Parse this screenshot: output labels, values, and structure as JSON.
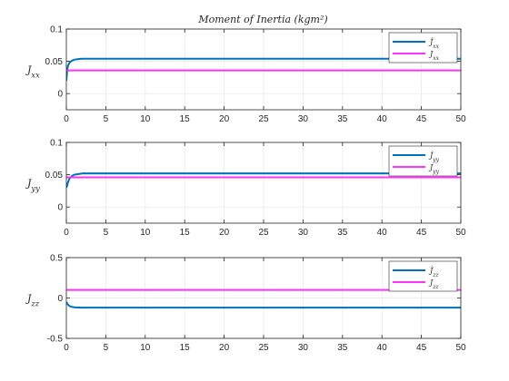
{
  "figure": {
    "title": "Moment of Inertia (kgm²)",
    "colors": {
      "estimate": "#0072BD",
      "true": "#FF33FF",
      "grid": "#e6e6e6",
      "axis": "#262626"
    }
  },
  "chart_data": [
    {
      "type": "line",
      "title": "Moment of Inertia (kgm²)",
      "xlabel": "",
      "ylabel": "J_xx",
      "xlim": [
        0,
        50
      ],
      "ylim": [
        -0.025,
        0.1
      ],
      "xticks": [
        0,
        5,
        10,
        15,
        20,
        25,
        30,
        35,
        40,
        45,
        50
      ],
      "yticks": [
        0,
        0.05,
        0.1
      ],
      "ytick_labels": [
        "0",
        "0.05",
        "0.1"
      ],
      "grid": true,
      "legend_position": "top-right",
      "series": [
        {
          "name": "Ĵ_xx",
          "color": "#0072BD",
          "x": [
            0,
            0.1,
            0.2,
            0.4,
            0.7,
            1.0,
            1.5,
            2.0,
            2.5,
            3.0,
            50
          ],
          "y": [
            0.02,
            0.035,
            0.043,
            0.048,
            0.051,
            0.0525,
            0.0535,
            0.054,
            0.054,
            0.054,
            0.054
          ]
        },
        {
          "name": "J_xx",
          "color": "#FF33FF",
          "x": [
            0,
            50
          ],
          "y": [
            0.036,
            0.036
          ]
        }
      ]
    },
    {
      "type": "line",
      "title": "",
      "xlabel": "",
      "ylabel": "J_yy",
      "xlim": [
        0,
        50
      ],
      "ylim": [
        -0.025,
        0.1
      ],
      "xticks": [
        0,
        5,
        10,
        15,
        20,
        25,
        30,
        35,
        40,
        45,
        50
      ],
      "yticks": [
        0,
        0.05,
        0.1
      ],
      "ytick_labels": [
        "0",
        "0.05",
        "0.1"
      ],
      "grid": true,
      "legend_position": "top-right",
      "series": [
        {
          "name": "Ĵ_yy",
          "color": "#0072BD",
          "x": [
            0,
            0.1,
            0.2,
            0.4,
            0.7,
            1.0,
            1.5,
            2.0,
            2.5,
            3.0,
            50
          ],
          "y": [
            0.03,
            0.033,
            0.038,
            0.044,
            0.048,
            0.05,
            0.051,
            0.052,
            0.052,
            0.052,
            0.052
          ]
        },
        {
          "name": "J_yy",
          "color": "#FF33FF",
          "x": [
            0,
            50
          ],
          "y": [
            0.046,
            0.046
          ]
        }
      ]
    },
    {
      "type": "line",
      "title": "",
      "xlabel": "",
      "ylabel": "J_zz",
      "xlim": [
        0,
        50
      ],
      "ylim": [
        -0.5,
        0.5
      ],
      "xticks": [
        0,
        5,
        10,
        15,
        20,
        25,
        30,
        35,
        40,
        45,
        50
      ],
      "yticks": [
        -0.5,
        0,
        0.5
      ],
      "ytick_labels": [
        "-0.5",
        "0",
        "0.5"
      ],
      "grid": true,
      "legend_position": "top-right",
      "series": [
        {
          "name": "Ĵ_zz",
          "color": "#0072BD",
          "x": [
            0,
            0.2,
            0.4,
            0.7,
            1.0,
            1.5,
            2.0,
            2.5,
            3.0,
            50
          ],
          "y": [
            -0.05,
            -0.08,
            -0.1,
            -0.11,
            -0.115,
            -0.118,
            -0.12,
            -0.12,
            -0.12,
            -0.12
          ]
        },
        {
          "name": "J_zz",
          "color": "#FF33FF",
          "x": [
            0,
            50
          ],
          "y": [
            0.1,
            0.1
          ]
        }
      ]
    }
  ]
}
